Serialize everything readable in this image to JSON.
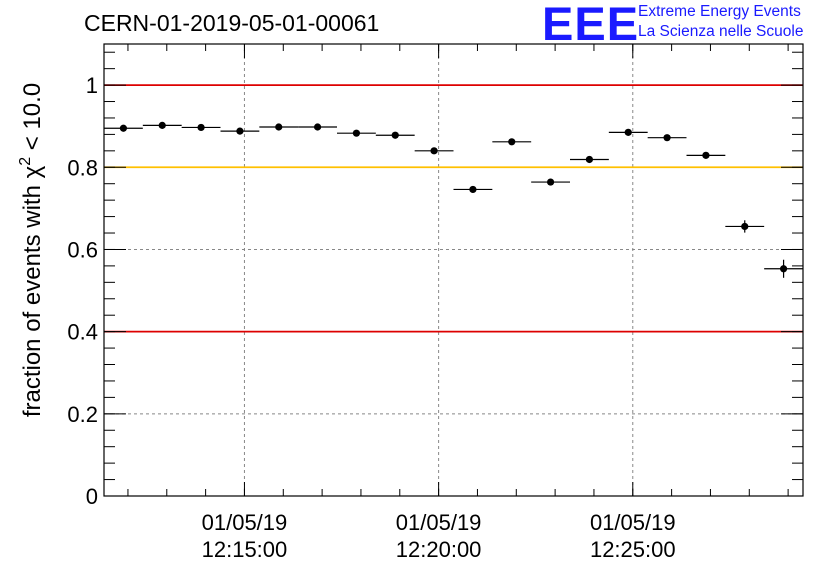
{
  "header": {
    "run_id": "CERN-01-2019-05-01-00061",
    "logo": {
      "mark": "EEE",
      "line1": "Extreme Energy Events",
      "line2": "La Scienza nelle Scuole"
    }
  },
  "colors": {
    "limit_red": "#dd0000",
    "limit_yellow": "#ffc000",
    "grid": "#888888",
    "logo_blue": "#1a1aff"
  },
  "chart_data": {
    "type": "scatter",
    "title": "CERN-01-2019-05-01-00061",
    "ylabel": "fraction of events with χ² < 10.0",
    "xlabel": "",
    "ylim": [
      0,
      1.1
    ],
    "xlim": [
      "01/05/19 12:11:23",
      "01/05/19 12:29:23"
    ],
    "yticks": [
      {
        "value": 0,
        "label": "0"
      },
      {
        "value": 0.2,
        "label": "0.2"
      },
      {
        "value": 0.4,
        "label": "0.4"
      },
      {
        "value": 0.6,
        "label": "0.6"
      },
      {
        "value": 0.8,
        "label": "0.8"
      },
      {
        "value": 1,
        "label": "1"
      }
    ],
    "xticks": [
      {
        "time": "01/05/19 12:15:00",
        "date": "01/05/19",
        "clock": "12:15:00"
      },
      {
        "time": "01/05/19 12:20:00",
        "date": "01/05/19",
        "clock": "12:20:00"
      },
      {
        "time": "01/05/19 12:25:00",
        "date": "01/05/19",
        "clock": "12:25:00"
      }
    ],
    "grid": true,
    "reference_lines": [
      {
        "y": 1.0,
        "color": "#dd0000"
      },
      {
        "y": 0.8,
        "color": "#ffc000"
      },
      {
        "y": 0.4,
        "color": "#dd0000"
      }
    ],
    "series": [
      {
        "points": [
          {
            "x": "01/05/19 12:11:53",
            "y": 0.895,
            "xerr_s": 30,
            "yerr": 0.006
          },
          {
            "x": "01/05/19 12:12:53",
            "y": 0.902,
            "xerr_s": 30,
            "yerr": 0.006
          },
          {
            "x": "01/05/19 12:13:53",
            "y": 0.897,
            "xerr_s": 30,
            "yerr": 0.006
          },
          {
            "x": "01/05/19 12:14:53",
            "y": 0.888,
            "xerr_s": 30,
            "yerr": 0.006
          },
          {
            "x": "01/05/19 12:15:53",
            "y": 0.898,
            "xerr_s": 30,
            "yerr": 0.006
          },
          {
            "x": "01/05/19 12:16:53",
            "y": 0.898,
            "xerr_s": 30,
            "yerr": 0.006
          },
          {
            "x": "01/05/19 12:17:53",
            "y": 0.883,
            "xerr_s": 30,
            "yerr": 0.006
          },
          {
            "x": "01/05/19 12:18:53",
            "y": 0.878,
            "xerr_s": 30,
            "yerr": 0.006
          },
          {
            "x": "01/05/19 12:19:53",
            "y": 0.84,
            "xerr_s": 30,
            "yerr": 0.007
          },
          {
            "x": "01/05/19 12:20:53",
            "y": 0.746,
            "xerr_s": 30,
            "yerr": 0.008
          },
          {
            "x": "01/05/19 12:21:53",
            "y": 0.862,
            "xerr_s": 30,
            "yerr": 0.006
          },
          {
            "x": "01/05/19 12:22:53",
            "y": 0.764,
            "xerr_s": 30,
            "yerr": 0.008
          },
          {
            "x": "01/05/19 12:23:53",
            "y": 0.819,
            "xerr_s": 30,
            "yerr": 0.007
          },
          {
            "x": "01/05/19 12:24:53",
            "y": 0.885,
            "xerr_s": 30,
            "yerr": 0.006
          },
          {
            "x": "01/05/19 12:25:53",
            "y": 0.872,
            "xerr_s": 30,
            "yerr": 0.006
          },
          {
            "x": "01/05/19 12:26:53",
            "y": 0.829,
            "xerr_s": 30,
            "yerr": 0.007
          },
          {
            "x": "01/05/19 12:27:53",
            "y": 0.656,
            "xerr_s": 30,
            "yerr": 0.015
          },
          {
            "x": "01/05/19 12:28:53",
            "y": 0.553,
            "xerr_s": 30,
            "yerr": 0.022
          }
        ]
      }
    ]
  }
}
